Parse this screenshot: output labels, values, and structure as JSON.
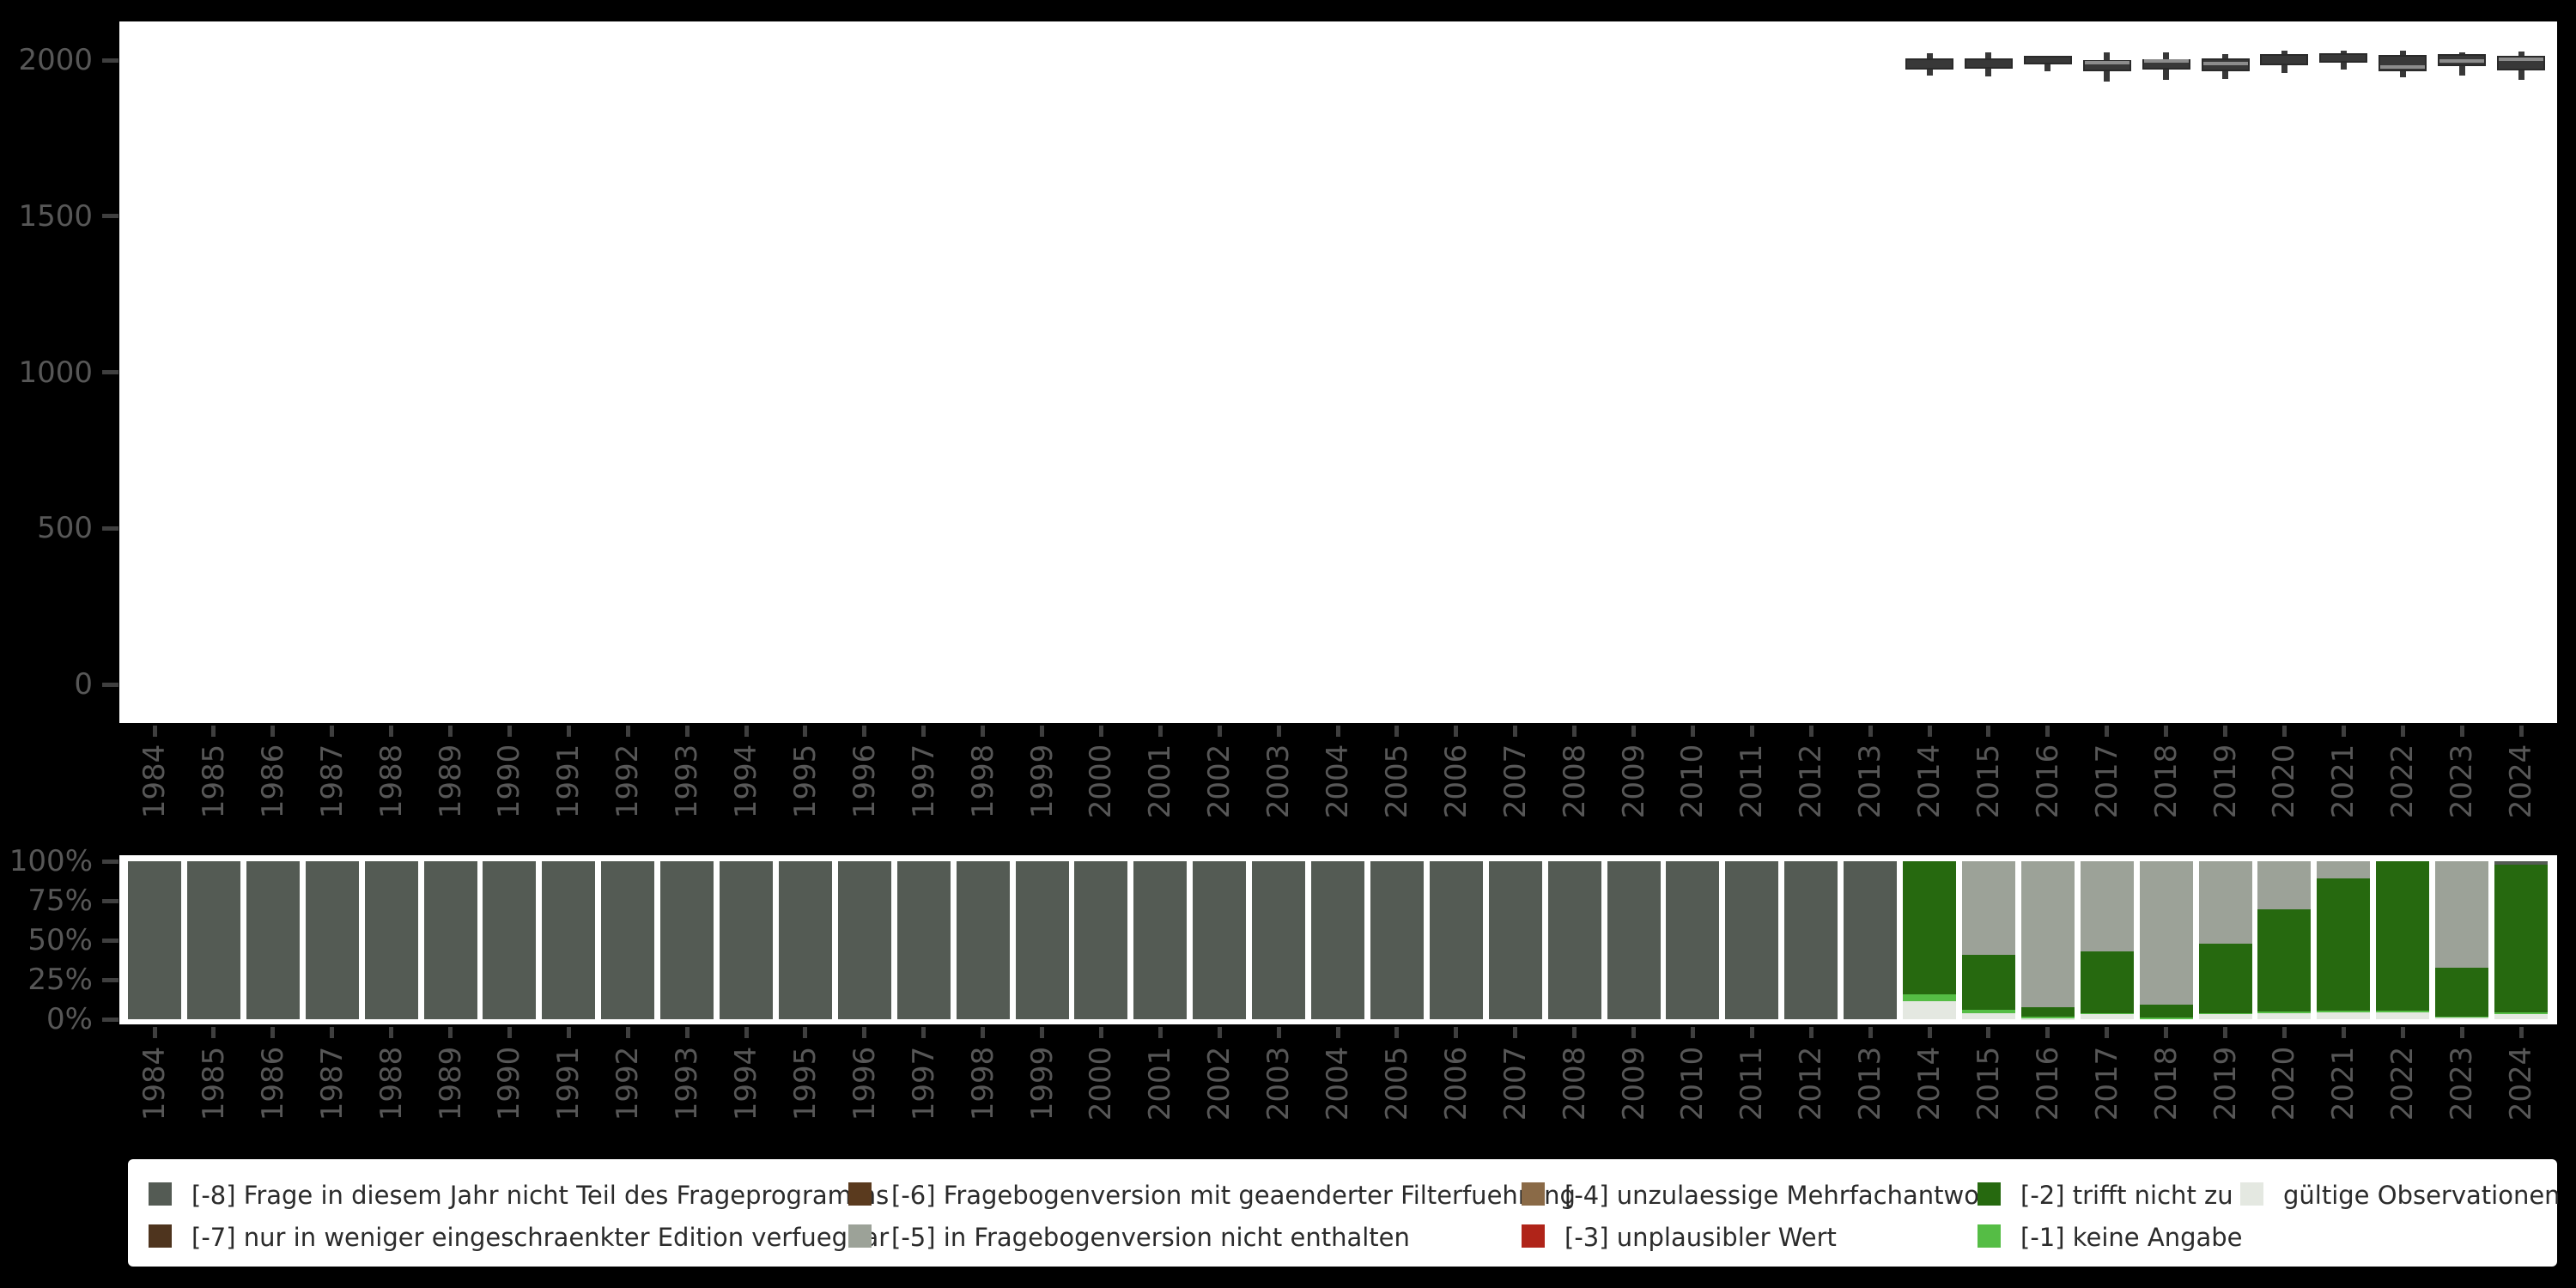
{
  "figure": {
    "background": "#000000",
    "panel_background": "#ffffff",
    "axis_text_color": "#575757",
    "tick_color": "#3f3f3f"
  },
  "chart_data": [
    {
      "id": "observations-boxplot",
      "type": "boxplot",
      "title": "",
      "xlabel": "",
      "ylabel": "",
      "grid": false,
      "ylim": [
        0,
        2120
      ],
      "yticks": [
        0,
        500,
        1000,
        1500,
        2000
      ],
      "ytick_labels": [
        "0",
        "500",
        "1000",
        "1500",
        "2000"
      ],
      "categories": [
        "1984",
        "1985",
        "1986",
        "1987",
        "1988",
        "1989",
        "1990",
        "1991",
        "1992",
        "1993",
        "1994",
        "1995",
        "1996",
        "1997",
        "1998",
        "1999",
        "2000",
        "2001",
        "2002",
        "2003",
        "2004",
        "2005",
        "2006",
        "2007",
        "2008",
        "2009",
        "2010",
        "2011",
        "2012",
        "2013",
        "2014",
        "2015",
        "2016",
        "2017",
        "2018",
        "2019",
        "2020",
        "2021",
        "2022",
        "2023",
        "2024"
      ],
      "box_fill": "#383838",
      "box_border": "#2a2a2a",
      "median_color": "#8c8c8c",
      "boxes": [
        {
          "year": "2014",
          "low": 1950,
          "q1": 1970,
          "median": 2004,
          "q3": 2006,
          "high": 2023,
          "median_line": false
        },
        {
          "year": "2015",
          "low": 1948,
          "q1": 1972,
          "median": 2004,
          "q3": 2006,
          "high": 2024,
          "median_line": false
        },
        {
          "year": "2016",
          "low": 1965,
          "q1": 1986,
          "median": 2012,
          "q3": 2014,
          "high": 2014,
          "median_line": false
        },
        {
          "year": "2017",
          "low": 1931,
          "q1": 1963,
          "median": 1991,
          "q3": 2000,
          "high": 2024,
          "median_line": true
        },
        {
          "year": "2018",
          "low": 1936,
          "q1": 1971,
          "median": 1998,
          "q3": 2004,
          "high": 2025,
          "median_line": true
        },
        {
          "year": "2019",
          "low": 1940,
          "q1": 1963,
          "median": 1988,
          "q3": 2005,
          "high": 2020,
          "median_line": true
        },
        {
          "year": "2020",
          "low": 1959,
          "q1": 1983,
          "median": 2016,
          "q3": 2018,
          "high": 2030,
          "median_line": false
        },
        {
          "year": "2021",
          "low": 1971,
          "q1": 1991,
          "median": 2021,
          "q3": 2023,
          "high": 2030,
          "median_line": false
        },
        {
          "year": "2022",
          "low": 1945,
          "q1": 1965,
          "median": 1977,
          "q3": 2017,
          "high": 2029,
          "median_line": true
        },
        {
          "year": "2023",
          "low": 1950,
          "q1": 1980,
          "median": 1997,
          "q3": 2020,
          "high": 2025,
          "median_line": true
        },
        {
          "year": "2024",
          "low": 1938,
          "q1": 1968,
          "median": 2002,
          "q3": 2014,
          "high": 2028,
          "median_line": true
        }
      ]
    },
    {
      "id": "missing-categories-stacked-bar",
      "type": "bar",
      "stacked": true,
      "title": "",
      "xlabel": "",
      "ylabel": "",
      "grid": false,
      "ylim_percent": [
        0,
        100
      ],
      "yticks_percent": [
        0,
        25,
        50,
        75,
        100
      ],
      "ytick_labels": [
        "0%",
        "25%",
        "50%",
        "75%",
        "100%"
      ],
      "categories": [
        "1984",
        "1985",
        "1986",
        "1987",
        "1988",
        "1989",
        "1990",
        "1991",
        "1992",
        "1993",
        "1994",
        "1995",
        "1996",
        "1997",
        "1998",
        "1999",
        "2000",
        "2001",
        "2002",
        "2003",
        "2004",
        "2005",
        "2006",
        "2007",
        "2008",
        "2009",
        "2010",
        "2011",
        "2012",
        "2013",
        "2014",
        "2015",
        "2016",
        "2017",
        "2018",
        "2019",
        "2020",
        "2021",
        "2022",
        "2023",
        "2024"
      ],
      "series": [
        {
          "key": "minus8",
          "label": "[-8] Frage in diesem Jahr nicht Teil des Frageprogramms",
          "color": "#545b54",
          "values": [
            100,
            100,
            100,
            100,
            100,
            100,
            100,
            100,
            100,
            100,
            100,
            100,
            100,
            100,
            100,
            100,
            100,
            100,
            100,
            100,
            100,
            100,
            100,
            100,
            100,
            100,
            100,
            100,
            100,
            100,
            0,
            0,
            0,
            0,
            0,
            0,
            0,
            0,
            0,
            0,
            2.1
          ]
        },
        {
          "key": "minus5",
          "label": "[-5] in Fragebogenversion nicht enthalten",
          "color": "#9ca298",
          "values": [
            0,
            0,
            0,
            0,
            0,
            0,
            0,
            0,
            0,
            0,
            0,
            0,
            0,
            0,
            0,
            0,
            0,
            0,
            0,
            0,
            0,
            0,
            0,
            0,
            0,
            0,
            0,
            0,
            0,
            0,
            0,
            59,
            92.5,
            57.3,
            90.6,
            52,
            30.2,
            10.7,
            0,
            67.6,
            0
          ]
        },
        {
          "key": "minus2",
          "label": "[-2] trifft nicht zu",
          "color": "#26690f",
          "values": [
            0,
            0,
            0,
            0,
            0,
            0,
            0,
            0,
            0,
            0,
            0,
            0,
            0,
            0,
            0,
            0,
            0,
            0,
            0,
            0,
            0,
            0,
            0,
            0,
            0,
            0,
            0,
            0,
            0,
            0,
            84.5,
            35.2,
            6,
            38.8,
            8.5,
            44,
            64.8,
            83.6,
            94.7,
            30.6,
            93.5
          ]
        },
        {
          "key": "minus1",
          "label": "[-1] keine Angabe",
          "color": "#55bd45",
          "values": [
            0,
            0,
            0,
            0,
            0,
            0,
            0,
            0,
            0,
            0,
            0,
            0,
            0,
            0,
            0,
            0,
            0,
            0,
            0,
            0,
            0,
            0,
            0,
            0,
            0,
            0,
            0,
            0,
            0,
            0,
            3.9,
            1.8,
            1,
            0.9,
            0.9,
            0.7,
            1,
            1.4,
            1,
            0.6,
            1.2
          ]
        },
        {
          "key": "valid",
          "label": "gültige Observationen",
          "color": "#e4e8e1",
          "values": [
            0,
            0,
            0,
            0,
            0,
            0,
            0,
            0,
            0,
            0,
            0,
            0,
            0,
            0,
            0,
            0,
            0,
            0,
            0,
            0,
            0,
            0,
            0,
            0,
            0,
            0,
            0,
            0,
            0,
            0,
            11.6,
            4,
            0.5,
            3,
            0,
            3.3,
            4,
            4.3,
            4.3,
            1.2,
            3.2
          ]
        }
      ]
    }
  ],
  "legend": {
    "background": "#ffffff",
    "text_color": "#2b2b2b",
    "items": [
      {
        "label": "[-8] Frage in diesem Jahr nicht Teil des Frageprogramms",
        "color": "#545b54",
        "col": 0,
        "row": 0
      },
      {
        "label": "[-7] nur in weniger eingeschraenkter Edition verfuegbar",
        "color": "#4e341e",
        "col": 0,
        "row": 1
      },
      {
        "label": "[-6] Fragebogenversion mit geaenderter Filterfuehrung",
        "color": "#5a3a1e",
        "col": 1,
        "row": 0
      },
      {
        "label": "[-5] in Fragebogenversion nicht enthalten",
        "color": "#9ca298",
        "col": 1,
        "row": 1
      },
      {
        "label": "[-4] unzulaessige Mehrfachantwort",
        "color": "#8a6a47",
        "col": 2,
        "row": 0
      },
      {
        "label": "[-3] unplausibler Wert",
        "color": "#b02419",
        "col": 2,
        "row": 1
      },
      {
        "label": "[-2] trifft nicht zu",
        "color": "#26690f",
        "col": 3,
        "row": 0
      },
      {
        "label": "[-1] keine Angabe",
        "color": "#55bd45",
        "col": 3,
        "row": 1
      },
      {
        "label": "gültige Observationen",
        "color": "#e4e8e1",
        "col": 4,
        "row": 0
      }
    ]
  }
}
